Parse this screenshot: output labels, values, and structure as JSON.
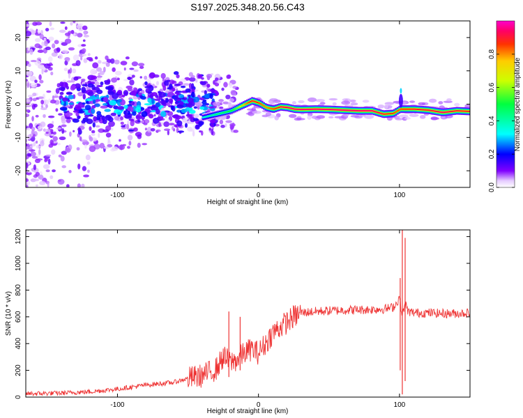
{
  "title": "S197.2025.348.20.56.C43",
  "chart_data": [
    {
      "type": "heatmap",
      "xlabel": "Height of straight line (km)",
      "ylabel": "Frequency (Hz)",
      "xlim": [
        -165,
        150
      ],
      "ylim": [
        -25,
        25
      ],
      "xticks": [
        -100,
        0,
        100
      ],
      "yticks": [
        -20,
        -10,
        0,
        10,
        20
      ],
      "colorbar": {
        "label": "Normalized spectral amplitude",
        "range": [
          0.0,
          1.0
        ],
        "ticks": [
          "0.0",
          "0.2",
          "0.4",
          "0.6",
          "0.8"
        ],
        "tick_values": [
          0.0,
          0.2,
          0.4,
          0.6,
          0.8
        ]
      },
      "ridge": {
        "x": [
          -40,
          -30,
          -20,
          -15,
          -10,
          -5,
          0,
          5,
          10,
          15,
          20,
          25,
          30,
          40,
          50,
          60,
          70,
          80,
          88,
          95,
          100,
          110,
          120,
          130,
          140,
          150
        ],
        "freq": [
          -4,
          -3,
          -2,
          -1,
          0,
          1,
          0.3,
          -1,
          -1.5,
          -0.8,
          -1,
          -1.5,
          -1.6,
          -1.5,
          -1.6,
          -1.8,
          -2,
          -2,
          -3,
          -2.8,
          -1.5,
          -1.5,
          -1.8,
          -2.5,
          -2,
          -2.2
        ],
        "amplitude": [
          0.35,
          0.45,
          0.5,
          0.6,
          0.8,
          0.9,
          0.85,
          0.8,
          0.85,
          0.9,
          0.95,
          0.95,
          0.95,
          0.95,
          0.95,
          0.95,
          0.95,
          0.95,
          0.9,
          0.85,
          0.85,
          0.9,
          0.9,
          0.95,
          0.9,
          0.9
        ]
      }
    },
    {
      "type": "line",
      "xlabel": "Height of straight line (km)",
      "ylabel": "SNR (10 * v/v)",
      "xlim": [
        -165,
        150
      ],
      "ylim": [
        0,
        1250
      ],
      "xticks": [
        -100,
        0,
        100
      ],
      "yticks": [
        0,
        200,
        400,
        600,
        800,
        1000,
        1200
      ],
      "series": [
        {
          "name": "SNR",
          "color": "#ee3333",
          "x": [
            -165,
            -140,
            -120,
            -100,
            -80,
            -60,
            -50,
            -40,
            -30,
            -25,
            -20,
            -15,
            -10,
            -5,
            0,
            5,
            10,
            15,
            20,
            25,
            30,
            40,
            60,
            80,
            90,
            95,
            98,
            100,
            102,
            104,
            106,
            110,
            120,
            130,
            140,
            150
          ],
          "y": [
            25,
            30,
            40,
            60,
            90,
            110,
            140,
            160,
            210,
            300,
            260,
            280,
            330,
            360,
            330,
            400,
            480,
            520,
            560,
            600,
            630,
            640,
            650,
            655,
            660,
            670,
            700,
            750,
            600,
            700,
            640,
            630,
            630,
            625,
            625,
            630
          ]
        }
      ],
      "spikes": [
        {
          "x": 102,
          "min": 20,
          "max": 1250
        },
        {
          "x": 104,
          "min": 120,
          "max": 1190
        },
        {
          "x": 100.5,
          "min": 200,
          "max": 890
        },
        {
          "x": -21,
          "min": 150,
          "max": 640
        },
        {
          "x": -13,
          "min": 200,
          "max": 600
        }
      ]
    }
  ]
}
